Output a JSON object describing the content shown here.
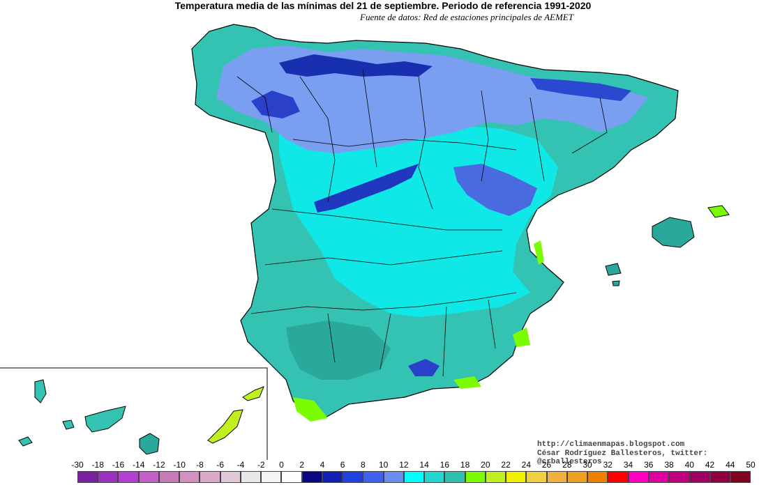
{
  "title": "Temperatura media de las mínimas del 21 de septiembre. Periodo de referencia 1991-2020",
  "subtitle": "Fuente de datos: Red de estaciones principales de AEMET",
  "credits": {
    "blog": "http://climaenmapas.blogspot.com",
    "author": "César Rodríguez Ballesteros, twitter: @crballesteros"
  },
  "legend": {
    "labels": [
      "-30",
      "-18",
      "-16",
      "-14",
      "-12",
      "-10",
      "-8",
      "-6",
      "-4",
      "-2",
      "0",
      "2",
      "4",
      "6",
      "8",
      "10",
      "12",
      "14",
      "16",
      "18",
      "20",
      "22",
      "24",
      "26",
      "28",
      "30",
      "32",
      "34",
      "36",
      "38",
      "40",
      "42",
      "44",
      "50"
    ],
    "colors": [
      "#7a1fa0",
      "#9b2fc0",
      "#b23fd0",
      "#c25fc8",
      "#c87ab8",
      "#d291c0",
      "#d8aac8",
      "#e0c8d8",
      "#e8e8e8",
      "#f4f4f4",
      "#fefefe",
      "#0a0a80",
      "#1020b0",
      "#2040e0",
      "#4060f0",
      "#6a8cf0",
      "#00ffff",
      "#20d8d0",
      "#30c0b0",
      "#7cfc00",
      "#c0f020",
      "#f0f000",
      "#f0d040",
      "#f0b040",
      "#f0a020",
      "#f08000",
      "#ff0000",
      "#ff00c0",
      "#e000a0",
      "#c00080",
      "#a00060",
      "#900040",
      "#800020"
    ]
  }
}
